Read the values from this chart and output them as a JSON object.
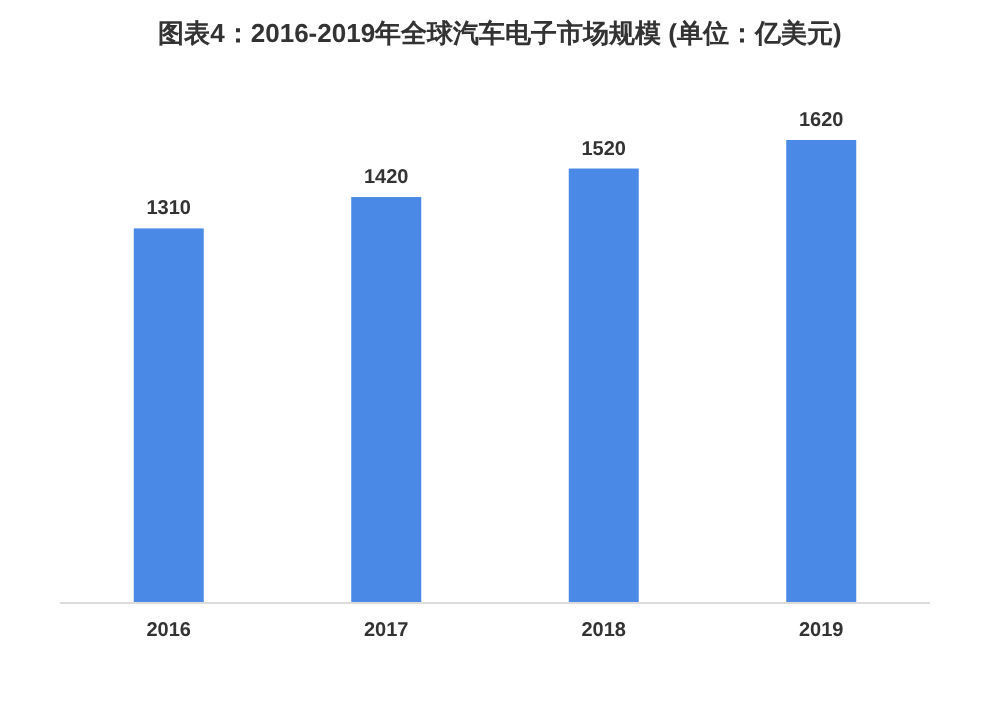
{
  "chart_data": {
    "type": "bar",
    "title": "图表4：2016-2019年全球汽车电子市场规模 (单位：亿美元)",
    "categories": [
      "2016",
      "2017",
      "2018",
      "2019"
    ],
    "values": [
      1310,
      1420,
      1520,
      1620
    ],
    "color": "#4a8ae6",
    "data_labels": true,
    "grid": false,
    "legend": false
  }
}
